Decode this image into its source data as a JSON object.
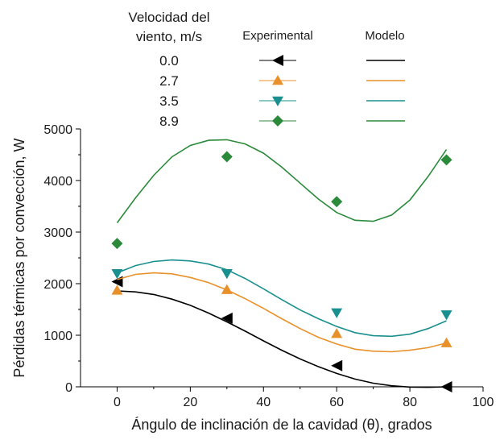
{
  "chart_data": {
    "type": "scatter",
    "title": "",
    "xlabel": "Ángulo de inclinación de la cavidad (θ), grados",
    "ylabel": "Pérdidas térmicas por convección, W",
    "xlim": [
      -10,
      100
    ],
    "ylim": [
      0,
      5000
    ],
    "xticks": [
      "0",
      "20",
      "40",
      "60",
      "80",
      "100"
    ],
    "yticks": [
      "0",
      "1000",
      "2000",
      "3000",
      "4000",
      "5000"
    ],
    "grid": false,
    "legend": {
      "placement": "top",
      "title_line1": "Velocidad del",
      "title_line2": "viento, m/s",
      "experimental_header": "Experimental",
      "model_header": "Modelo"
    },
    "series": [
      {
        "name": "0.0",
        "color": "#000000",
        "marker": "triangle-left",
        "experimental": {
          "x": [
            0,
            30,
            60,
            90
          ],
          "y": [
            2040,
            1330,
            410,
            0
          ]
        },
        "model": {
          "x": [
            0,
            5,
            10,
            15,
            20,
            25,
            30,
            35,
            40,
            45,
            50,
            55,
            60,
            65,
            70,
            75,
            80,
            85,
            90
          ],
          "y": [
            1860,
            1840,
            1790,
            1700,
            1580,
            1430,
            1260,
            1080,
            890,
            710,
            540,
            390,
            260,
            150,
            70,
            20,
            -5,
            -10,
            0
          ]
        }
      },
      {
        "name": "2.7",
        "color": "#e8912a",
        "marker": "triangle-up",
        "experimental": {
          "x": [
            0,
            30,
            60,
            90
          ],
          "y": [
            1870,
            1880,
            1030,
            850
          ]
        },
        "model": {
          "x": [
            0,
            5,
            10,
            15,
            20,
            25,
            30,
            35,
            40,
            45,
            50,
            55,
            60,
            65,
            70,
            75,
            80,
            85,
            90
          ],
          "y": [
            2080,
            2180,
            2210,
            2190,
            2120,
            2020,
            1880,
            1710,
            1520,
            1320,
            1130,
            960,
            830,
            730,
            690,
            680,
            710,
            760,
            850
          ]
        }
      },
      {
        "name": "3.5",
        "color": "#1a8f8f",
        "marker": "triangle-down",
        "experimental": {
          "x": [
            0,
            30,
            60,
            90
          ],
          "y": [
            2200,
            2200,
            1440,
            1400
          ]
        },
        "model": {
          "x": [
            0,
            5,
            10,
            15,
            20,
            25,
            30,
            35,
            40,
            45,
            50,
            55,
            60,
            65,
            70,
            75,
            80,
            85,
            90
          ],
          "y": [
            2210,
            2350,
            2430,
            2460,
            2440,
            2380,
            2270,
            2100,
            1900,
            1690,
            1490,
            1320,
            1170,
            1050,
            990,
            980,
            1020,
            1130,
            1280
          ]
        }
      },
      {
        "name": "8.9",
        "color": "#2a8a3a",
        "marker": "diamond",
        "experimental": {
          "x": [
            0,
            30,
            60,
            90
          ],
          "y": [
            2780,
            4460,
            3590,
            4400
          ]
        },
        "model": {
          "x": [
            0,
            5,
            10,
            15,
            20,
            25,
            30,
            35,
            40,
            45,
            50,
            55,
            60,
            65,
            70,
            75,
            80,
            85,
            90
          ],
          "y": [
            3180,
            3660,
            4100,
            4460,
            4680,
            4780,
            4790,
            4710,
            4530,
            4260,
            3950,
            3640,
            3380,
            3230,
            3210,
            3330,
            3620,
            4080,
            4600
          ]
        }
      }
    ]
  }
}
